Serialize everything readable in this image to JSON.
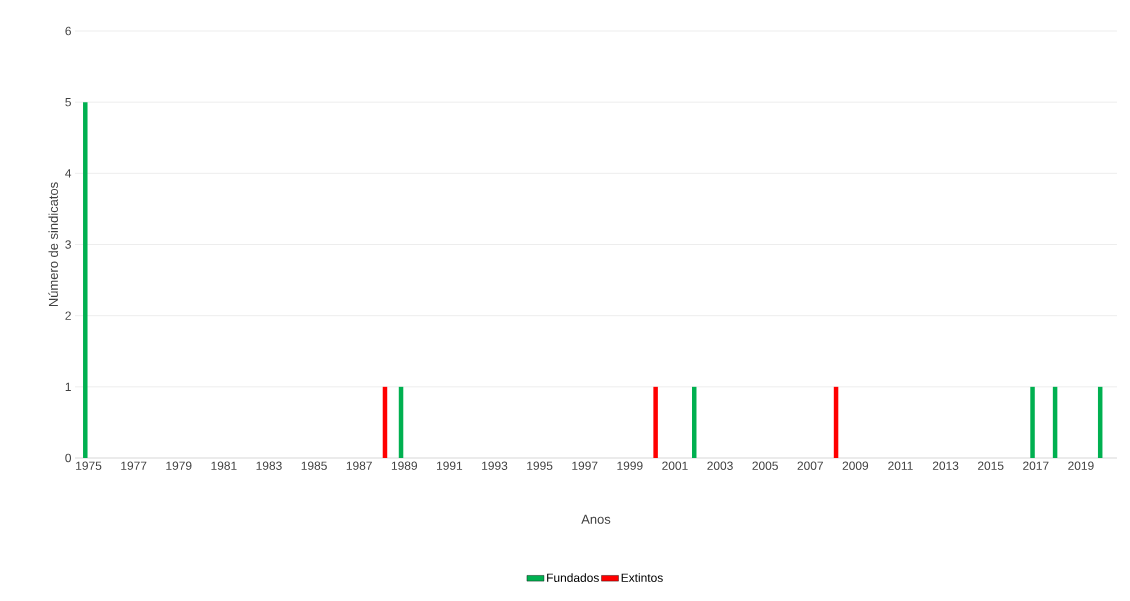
{
  "chart_data": {
    "type": "bar",
    "xlabel": "Anos",
    "ylabel": "Número de sindicatos",
    "categories": [
      "1975",
      null,
      "1977",
      null,
      "1979",
      null,
      "1981",
      null,
      "1983",
      null,
      "1985",
      null,
      "1987",
      null,
      "1989",
      null,
      "1991",
      null,
      "1993",
      null,
      "1995",
      null,
      "1997",
      null,
      "1999",
      null,
      "2001",
      null,
      "2003",
      null,
      "2005",
      null,
      "2007",
      null,
      "2009",
      null,
      "2011",
      null,
      "2013",
      null,
      "2015",
      null,
      "2017",
      null,
      "2019",
      null
    ],
    "series": [
      {
        "name": "Fundados",
        "color": "#00b050",
        "values": [
          5,
          0,
          0,
          0,
          0,
          0,
          0,
          0,
          0,
          0,
          0,
          0,
          0,
          0,
          1,
          0,
          0,
          0,
          0,
          0,
          0,
          0,
          0,
          0,
          0,
          0,
          0,
          1,
          0,
          0,
          0,
          0,
          0,
          0,
          0,
          0,
          0,
          0,
          0,
          0,
          0,
          0,
          1,
          1,
          0,
          1
        ]
      },
      {
        "name": "Extintos",
        "color": "#ff0000",
        "values": [
          0,
          0,
          0,
          0,
          0,
          0,
          0,
          0,
          0,
          0,
          0,
          0,
          0,
          1,
          0,
          0,
          0,
          0,
          0,
          0,
          0,
          0,
          0,
          0,
          0,
          1,
          0,
          0,
          0,
          0,
          0,
          0,
          0,
          1,
          0,
          0,
          0,
          0,
          0,
          0,
          0,
          0,
          0,
          0,
          0,
          0
        ]
      }
    ],
    "ylim": [
      0,
      6
    ],
    "yticks": [
      0,
      1,
      2,
      3,
      4,
      5,
      6
    ],
    "grid": "y",
    "legend": "bottom"
  }
}
